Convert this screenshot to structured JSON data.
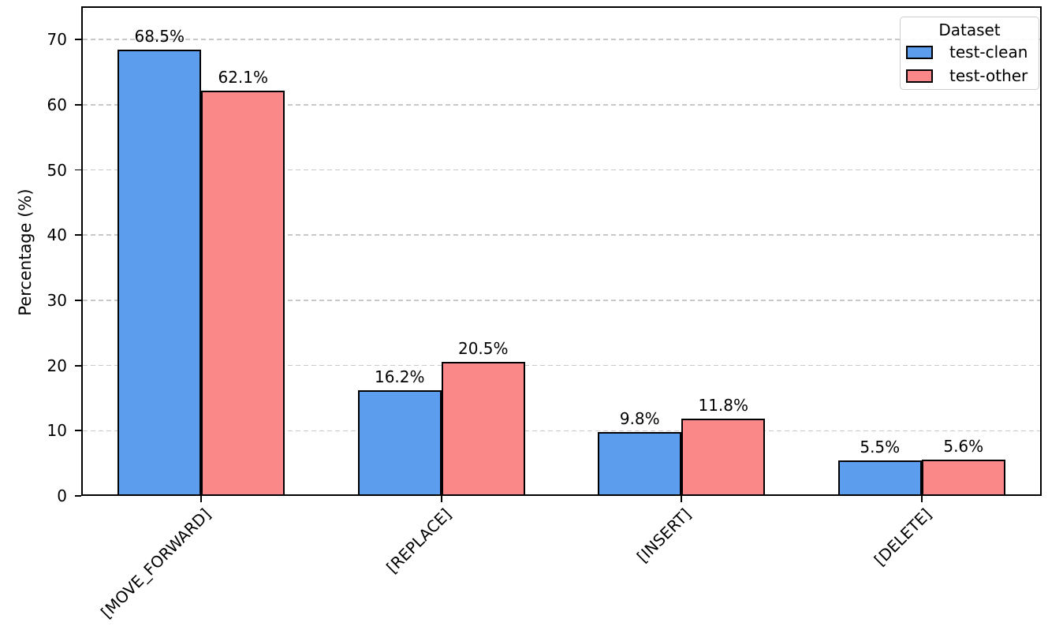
{
  "chart_data": {
    "type": "bar",
    "title": "",
    "categories": [
      "[MOVE_FORWARD]",
      "[REPLACE]",
      "[INSERT]",
      "[DELETE]"
    ],
    "series": [
      {
        "name": "test-clean",
        "color": "#5c9ded",
        "values": [
          68.5,
          16.2,
          9.8,
          5.5
        ],
        "labels": [
          "68.5%",
          "16.2%",
          "9.8%",
          "5.5%"
        ]
      },
      {
        "name": "test-other",
        "color": "#fb8888",
        "values": [
          62.1,
          20.5,
          11.8,
          5.6
        ],
        "labels": [
          "62.1%",
          "20.5%",
          "11.8%",
          "5.6%"
        ]
      }
    ],
    "xlabel": "",
    "ylabel": "Percentage (%)",
    "ylim": [
      0,
      75.1
    ],
    "yticks": [
      0,
      10,
      20,
      30,
      40,
      50,
      60,
      70
    ],
    "grid": {
      "axis": "y",
      "style": "dashed",
      "color": "#c8c8c8"
    },
    "legend": {
      "title": "Dataset",
      "position": "upper right"
    },
    "bar_edge_color": "#000000",
    "background": "#ffffff"
  }
}
